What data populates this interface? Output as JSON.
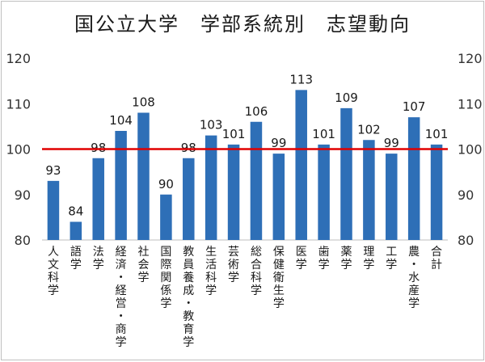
{
  "chart_data": {
    "type": "bar",
    "title": "国公立大学　学部系統別　志望動向",
    "categories": [
      "人文科学",
      "語学",
      "法学",
      "経済・経営・商学",
      "社会学",
      "国際関係学",
      "教員養成・教育学",
      "生活科学",
      "芸術学",
      "総合科学",
      "保健衛生学",
      "医学",
      "歯学",
      "薬学",
      "理学",
      "工学",
      "農・水産学",
      "合計"
    ],
    "values": [
      93,
      84,
      98,
      104,
      108,
      90,
      98,
      103,
      101,
      106,
      99,
      113,
      101,
      109,
      102,
      99,
      107,
      101
    ],
    "ylim": [
      80,
      120
    ],
    "yticks": [
      80,
      90,
      100,
      110,
      120
    ],
    "reference_line": 100,
    "secondary_axis": true,
    "bar_color": "#2e6fb7",
    "reference_color": "#e00000",
    "xlabel": "",
    "ylabel": ""
  }
}
